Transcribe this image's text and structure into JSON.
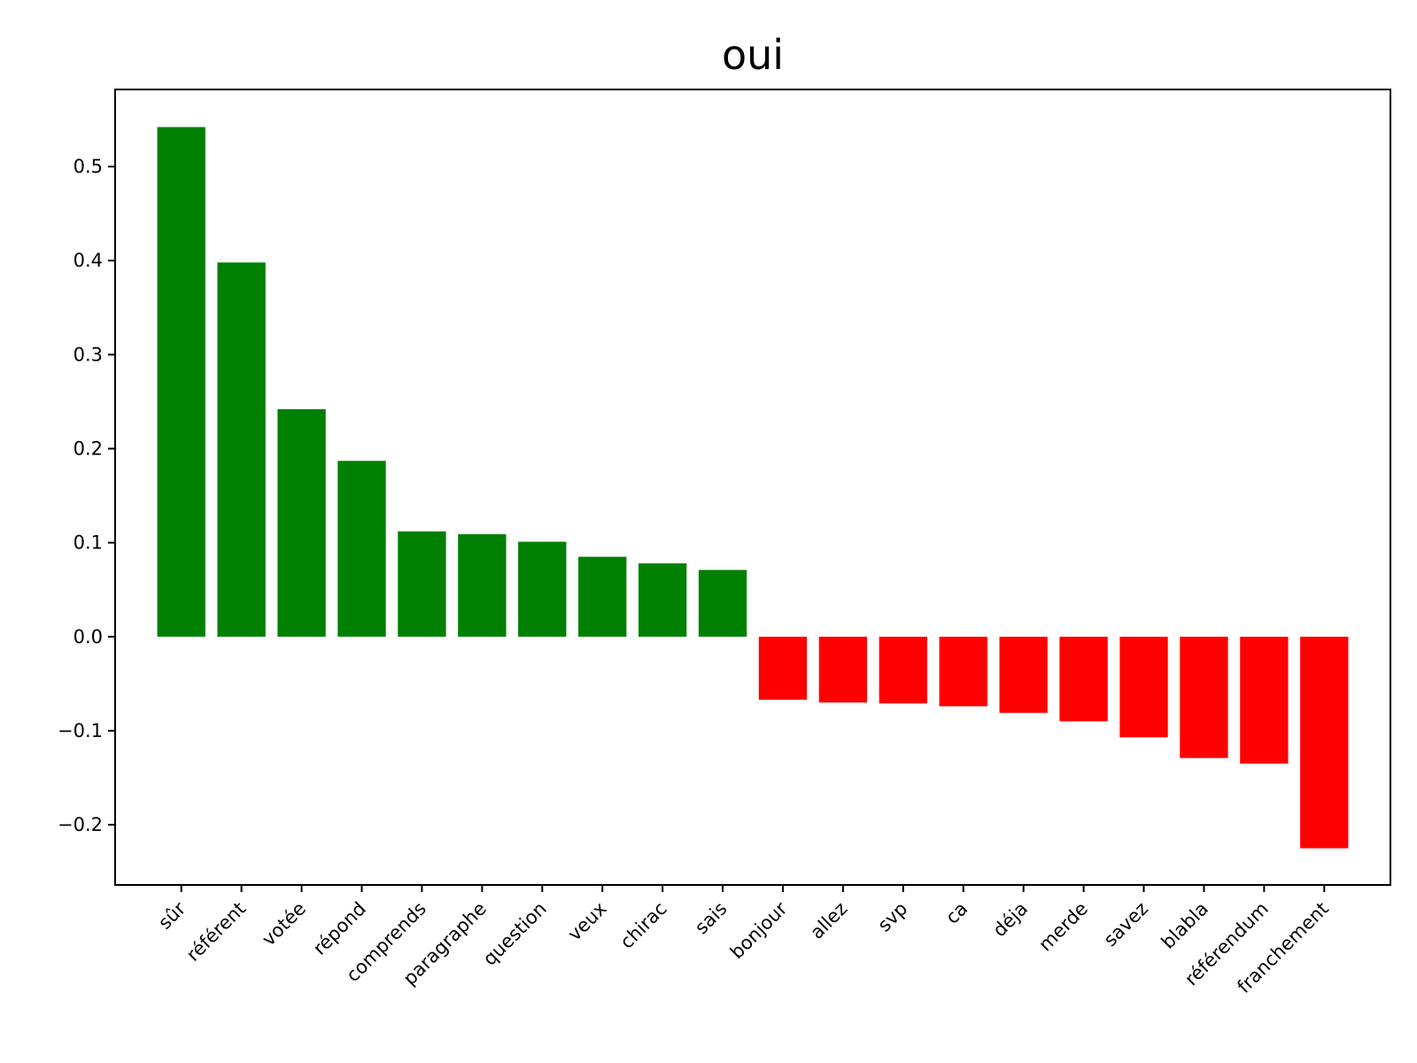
{
  "chart_data": {
    "type": "bar",
    "title": "oui",
    "xlabel": "",
    "ylabel": "",
    "categories": [
      "sûr",
      "référent",
      "votée",
      "répond",
      "comprends",
      "paragraphe",
      "question",
      "veux",
      "chirac",
      "sais",
      "bonjour",
      "allez",
      "svp",
      "ca",
      "déja",
      "merde",
      "savez",
      "blabla",
      "référendum",
      "franchement"
    ],
    "values": [
      0.542,
      0.398,
      0.242,
      0.187,
      0.112,
      0.109,
      0.101,
      0.085,
      0.078,
      0.071,
      -0.067,
      -0.07,
      -0.071,
      -0.074,
      -0.081,
      -0.09,
      -0.107,
      -0.129,
      -0.135,
      -0.225
    ],
    "ylim": [
      -0.264,
      0.582
    ],
    "yticks": [
      -0.2,
      -0.1,
      0.0,
      0.1,
      0.2,
      0.3,
      0.4,
      0.5
    ],
    "ytick_labels": [
      "−0.2",
      "−0.1",
      "0.0",
      "0.1",
      "0.2",
      "0.3",
      "0.4",
      "0.5"
    ],
    "grid": false,
    "legend": "none",
    "colors": {
      "positive": "#008000",
      "negative": "#ff0000"
    }
  }
}
